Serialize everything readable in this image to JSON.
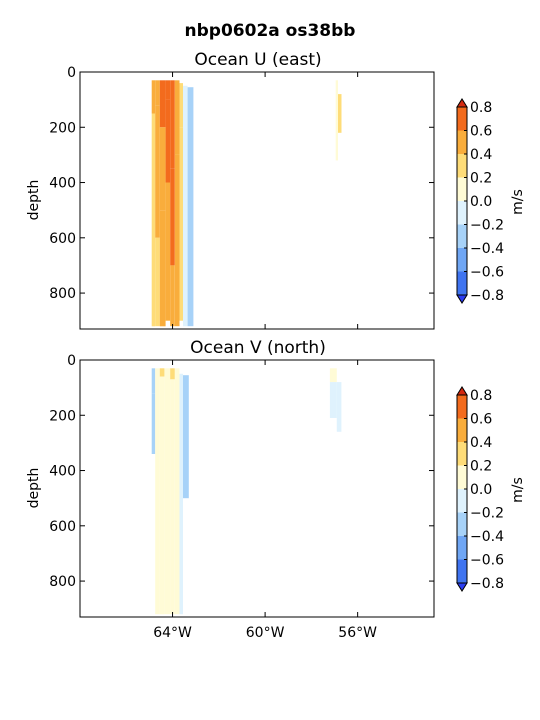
{
  "figure_title": "nbp0602a os38bb",
  "colorbar": {
    "label": "m/s",
    "levels": [
      -0.8,
      -0.6,
      -0.4,
      -0.2,
      0.0,
      0.2,
      0.4,
      0.6,
      0.8
    ],
    "tick_labels": [
      "−0.8",
      "−0.6",
      "−0.4",
      "−0.2",
      "0.0",
      "0.2",
      "0.4",
      "0.6",
      "0.8"
    ],
    "colors": [
      "#2b3df2",
      "#3f74f0",
      "#6fa6f4",
      "#a7d2f8",
      "#dff2fd",
      "#fffbd6",
      "#fedc78",
      "#f9ad3c",
      "#f36b1d",
      "#d42a10"
    ]
  },
  "x_tick_labels": [
    "64°W",
    "60°W",
    "56°W"
  ],
  "y_tick_labels": [
    "0",
    "200",
    "400",
    "600",
    "800"
  ],
  "chart_data": [
    {
      "type": "heatmap",
      "title": "Ocean U (east)",
      "xlabel": "",
      "ylabel": "depth",
      "xlim": [
        -68.0,
        -52.7
      ],
      "ylim": [
        930,
        0
      ],
      "xticks": [
        -64,
        -60,
        -56
      ],
      "yticks": [
        0,
        200,
        400,
        600,
        800
      ],
      "value_units": "m/s",
      "columns": [
        {
          "x": [
            -64.9,
            -64.75
          ],
          "z": [
            [
              30,
              150,
              0.5
            ],
            [
              150,
              340,
              0.3
            ],
            [
              340,
              920,
              0.3
            ]
          ]
        },
        {
          "x": [
            -64.75,
            -64.55
          ],
          "z": [
            [
              30,
              120,
              0.5
            ],
            [
              120,
              600,
              0.5
            ],
            [
              600,
              920,
              0.3
            ]
          ]
        },
        {
          "x": [
            -64.55,
            -64.3
          ],
          "z": [
            [
              30,
              200,
              0.7
            ],
            [
              200,
              500,
              0.5
            ],
            [
              500,
              920,
              0.5
            ]
          ]
        },
        {
          "x": [
            -64.3,
            -64.1
          ],
          "z": [
            [
              30,
              100,
              0.7
            ],
            [
              100,
              400,
              0.7
            ],
            [
              400,
              900,
              0.5
            ]
          ]
        },
        {
          "x": [
            -64.1,
            -63.9
          ],
          "z": [
            [
              30,
              350,
              0.7
            ],
            [
              350,
              700,
              0.7
            ],
            [
              700,
              920,
              0.5
            ]
          ]
        },
        {
          "x": [
            -63.9,
            -63.7
          ],
          "z": [
            [
              30,
              300,
              0.5
            ],
            [
              300,
              920,
              0.5
            ]
          ]
        },
        {
          "x": [
            -63.7,
            -63.55
          ],
          "z": [
            [
              40,
              200,
              0.3
            ],
            [
              200,
              900,
              0.3
            ]
          ]
        },
        {
          "x": [
            -63.55,
            -63.35
          ],
          "z": [
            [
              50,
              920,
              -0.1
            ]
          ]
        },
        {
          "x": [
            -63.35,
            -63.1
          ],
          "z": [
            [
              55,
              920,
              -0.3
            ]
          ]
        },
        {
          "x": [
            -56.95,
            -56.85
          ],
          "z": [
            [
              30,
              180,
              0.1
            ],
            [
              180,
              320,
              0.1
            ]
          ]
        },
        {
          "x": [
            -56.85,
            -56.7
          ],
          "z": [
            [
              80,
              220,
              0.3
            ]
          ]
        }
      ]
    },
    {
      "type": "heatmap",
      "title": "Ocean V (north)",
      "xlabel": "",
      "ylabel": "depth",
      "xlim": [
        -68.0,
        -52.7
      ],
      "ylim": [
        930,
        0
      ],
      "xticks": [
        -64,
        -60,
        -56
      ],
      "yticks": [
        0,
        200,
        400,
        600,
        800
      ],
      "value_units": "m/s",
      "columns": [
        {
          "x": [
            -64.9,
            -64.75
          ],
          "z": [
            [
              30,
              120,
              -0.3
            ],
            [
              120,
              340,
              -0.3
            ]
          ]
        },
        {
          "x": [
            -64.75,
            -64.55
          ],
          "z": [
            [
              30,
              920,
              0.1
            ]
          ]
        },
        {
          "x": [
            -64.55,
            -64.35
          ],
          "z": [
            [
              30,
              60,
              0.3
            ],
            [
              60,
              920,
              0.1
            ]
          ]
        },
        {
          "x": [
            -64.35,
            -64.1
          ],
          "z": [
            [
              30,
              920,
              0.1
            ]
          ]
        },
        {
          "x": [
            -64.1,
            -63.9
          ],
          "z": [
            [
              30,
              70,
              0.3
            ],
            [
              70,
              920,
              0.1
            ]
          ]
        },
        {
          "x": [
            -63.9,
            -63.7
          ],
          "z": [
            [
              30,
              920,
              0.1
            ]
          ]
        },
        {
          "x": [
            -63.7,
            -63.55
          ],
          "z": [
            [
              50,
              920,
              -0.1
            ]
          ]
        },
        {
          "x": [
            -63.55,
            -63.3
          ],
          "z": [
            [
              55,
              500,
              -0.3
            ]
          ]
        },
        {
          "x": [
            -57.2,
            -56.9
          ],
          "z": [
            [
              30,
              80,
              0.1
            ],
            [
              80,
              210,
              -0.1
            ]
          ]
        },
        {
          "x": [
            -56.9,
            -56.7
          ],
          "z": [
            [
              80,
              260,
              -0.1
            ]
          ]
        }
      ]
    }
  ]
}
